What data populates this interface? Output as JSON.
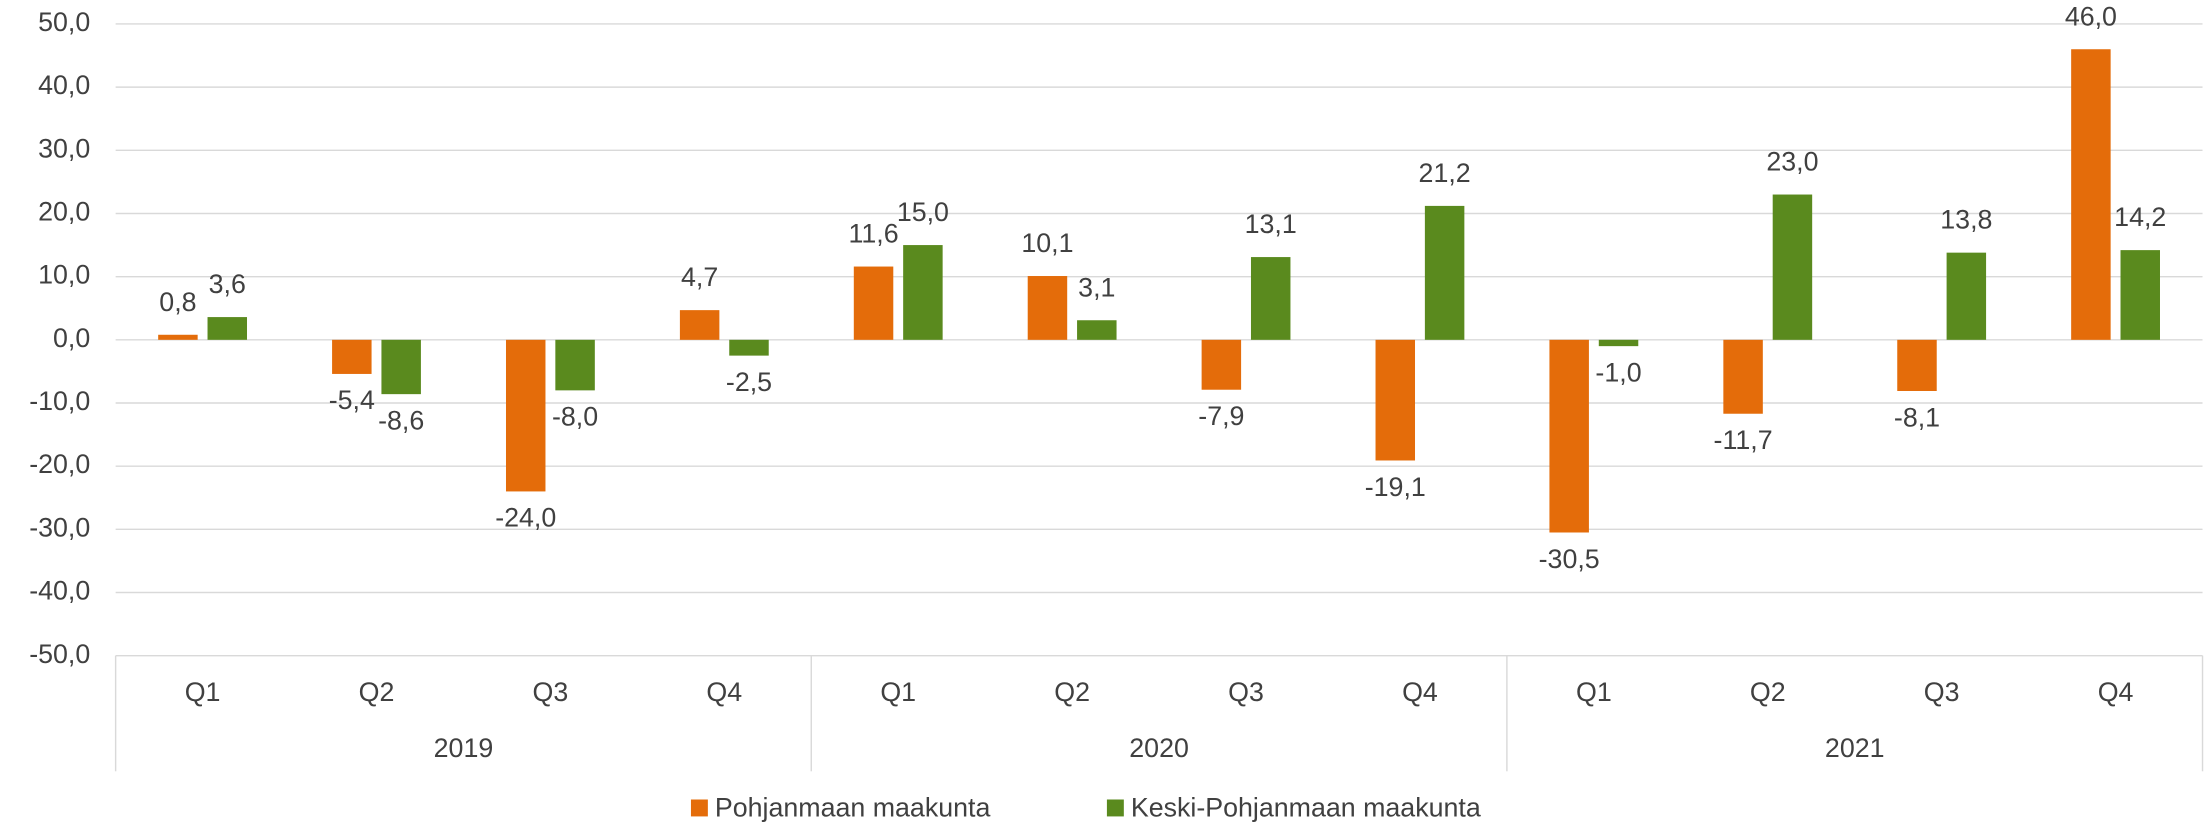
{
  "chart_data": {
    "type": "bar",
    "categories": [
      "Q1",
      "Q2",
      "Q3",
      "Q4",
      "Q1",
      "Q2",
      "Q3",
      "Q4",
      "Q1",
      "Q2",
      "Q3",
      "Q4"
    ],
    "groups": [
      "2019",
      "2020",
      "2021"
    ],
    "series": [
      {
        "name": "Pohjanmaan maakunta",
        "color": "#e46c0a",
        "values": [
          0.8,
          -5.4,
          -24.0,
          4.7,
          11.6,
          10.1,
          -7.9,
          -19.1,
          -30.5,
          -11.7,
          -8.1,
          46.0
        ],
        "value_labels": [
          "0,8",
          "-5,4",
          "-24,0",
          "4,7",
          "11,6",
          "10,1",
          "-7,9",
          "-19,1",
          "-30,5",
          "-11,7",
          "-8,1",
          "46,0"
        ]
      },
      {
        "name": "Keski-Pohjanmaan maakunta",
        "color": "#5a8a1e",
        "values": [
          3.6,
          -8.6,
          -8.0,
          -2.5,
          15.0,
          3.1,
          13.1,
          21.2,
          -1.0,
          23.0,
          13.8,
          14.2
        ],
        "value_labels": [
          "3,6",
          "-8,6",
          "-8,0",
          "-2,5",
          "15,0",
          "3,1",
          "13,1",
          "21,2",
          "-1,0",
          "23,0",
          "13,8",
          "14,2"
        ]
      }
    ],
    "ylim": [
      -50,
      50
    ],
    "yticks": [
      {
        "value": -50,
        "label": "-50,0"
      },
      {
        "value": -40,
        "label": "-40,0"
      },
      {
        "value": -30,
        "label": "-30,0"
      },
      {
        "value": -20,
        "label": "-20,0"
      },
      {
        "value": -10,
        "label": "-10,0"
      },
      {
        "value": 0,
        "label": "0,0"
      },
      {
        "value": 10,
        "label": "10,0"
      },
      {
        "value": 20,
        "label": "20,0"
      },
      {
        "value": 30,
        "label": "30,0"
      },
      {
        "value": 40,
        "label": "40,0"
      },
      {
        "value": 50,
        "label": "50,0"
      }
    ],
    "grid": true,
    "legend": "bottom"
  }
}
